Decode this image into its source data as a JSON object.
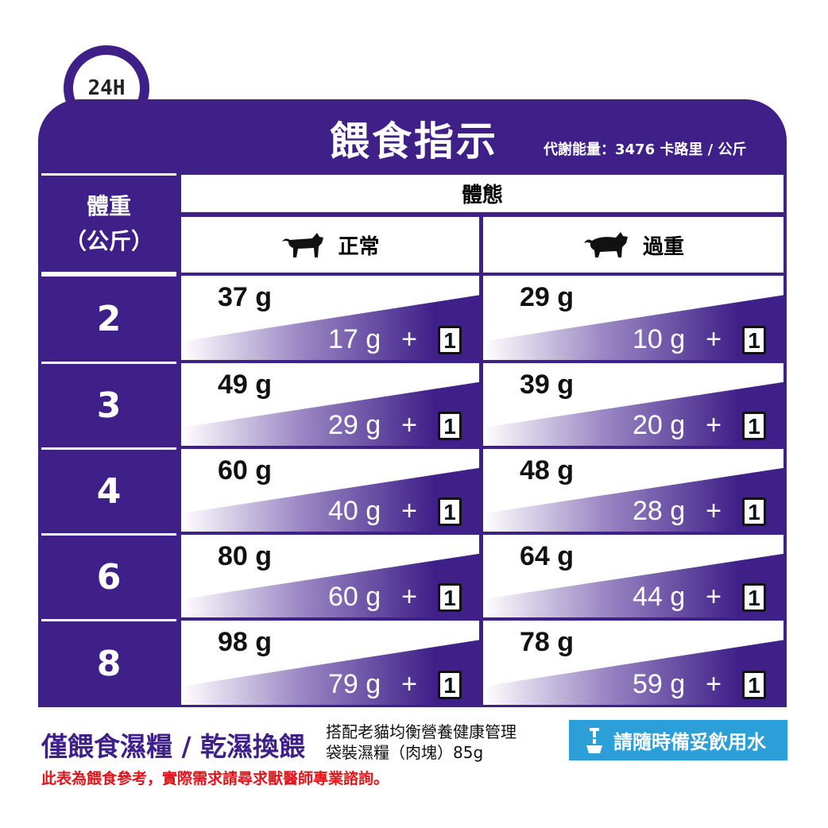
{
  "badge": "24H",
  "header": {
    "title": "餵食指示",
    "energy": "代謝能量：3476 卡路里 / 公斤"
  },
  "table": {
    "weight_header_line1": "體重",
    "weight_header_line2": "（公斤）",
    "body_condition": "體態",
    "columns": [
      {
        "label": "正常",
        "icon": "cat-walking-icon"
      },
      {
        "label": "過重",
        "icon": "cat-overweight-icon"
      }
    ],
    "rows": [
      {
        "weight": "2",
        "normal": {
          "dry_only": "37 g",
          "dry_mixed": "17 g",
          "plus": "+",
          "pouches": "1"
        },
        "overweight": {
          "dry_only": "29 g",
          "dry_mixed": "10 g",
          "plus": "+",
          "pouches": "1"
        }
      },
      {
        "weight": "3",
        "normal": {
          "dry_only": "49 g",
          "dry_mixed": "29 g",
          "plus": "+",
          "pouches": "1"
        },
        "overweight": {
          "dry_only": "39 g",
          "dry_mixed": "20 g",
          "plus": "+",
          "pouches": "1"
        }
      },
      {
        "weight": "4",
        "normal": {
          "dry_only": "60 g",
          "dry_mixed": "40 g",
          "plus": "+",
          "pouches": "1"
        },
        "overweight": {
          "dry_only": "48 g",
          "dry_mixed": "28 g",
          "plus": "+",
          "pouches": "1"
        }
      },
      {
        "weight": "6",
        "normal": {
          "dry_only": "80 g",
          "dry_mixed": "60 g",
          "plus": "+",
          "pouches": "1"
        },
        "overweight": {
          "dry_only": "64 g",
          "dry_mixed": "44 g",
          "plus": "+",
          "pouches": "1"
        }
      },
      {
        "weight": "8",
        "normal": {
          "dry_only": "98 g",
          "dry_mixed": "79 g",
          "plus": "+",
          "pouches": "1"
        },
        "overweight": {
          "dry_only": "78 g",
          "dry_mixed": "59 g",
          "plus": "+",
          "pouches": "1"
        }
      }
    ]
  },
  "footer": {
    "legend": "僅餵食濕糧 / 乾濕換餵",
    "pouch_line1": "搭配老貓均衡營養健康管理",
    "pouch_line2": "袋裝濕糧（肉塊）85g",
    "water": "請隨時備妥飲用水",
    "note": "此表為餵食參考，實際需求請尋求獸醫師專業諮詢。"
  },
  "colors": {
    "purple": "#3f2088",
    "blue": "#2c9ed8",
    "red": "#e0151b"
  }
}
